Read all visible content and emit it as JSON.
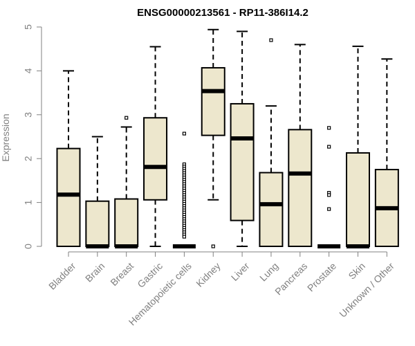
{
  "chart_data": {
    "type": "box",
    "title": "ENSG00000213561 - RP11-386I14.2",
    "xlabel": "",
    "ylabel": "Expression",
    "ylim": [
      0,
      5
    ],
    "yticks": [
      0,
      1,
      2,
      3,
      4,
      5
    ],
    "grid": false,
    "box_fill": "#ede7cd",
    "box_stroke": "#000000",
    "axis_color": "#808080",
    "categories": [
      "Bladder",
      "Brain",
      "Breast",
      "Gastric",
      "Hematopoietic cells",
      "Kidney",
      "Liver",
      "Lung",
      "Pancreas",
      "Prostate",
      "Skin",
      "Unknown / Other"
    ],
    "boxes": [
      {
        "min": 0,
        "q1": 0,
        "median": 1.18,
        "q3": 2.23,
        "max": 4.0,
        "outliers": []
      },
      {
        "min": 0,
        "q1": 0,
        "median": 0,
        "q3": 1.03,
        "max": 2.5,
        "outliers": []
      },
      {
        "min": 0,
        "q1": 0,
        "median": 0,
        "q3": 1.08,
        "max": 2.72,
        "outliers": [
          2.93
        ]
      },
      {
        "min": 0,
        "q1": 1.06,
        "median": 1.81,
        "q3": 2.93,
        "max": 4.55,
        "outliers": []
      },
      {
        "min": 0,
        "q1": 0,
        "median": 0,
        "q3": 0,
        "max": 0,
        "outliers": [
          2.57,
          1.87,
          1.82,
          1.77,
          1.72,
          1.67,
          1.62,
          1.57,
          1.52,
          1.47,
          1.42,
          1.37,
          1.32,
          1.27,
          1.22,
          1.17,
          1.12,
          1.07,
          1.02,
          0.97,
          0.92,
          0.87,
          0.82,
          0.77,
          0.72,
          0.67,
          0.62,
          0.57,
          0.52,
          0.47,
          0.42,
          0.37,
          0.32,
          0.27,
          0.22
        ]
      },
      {
        "min": 1.06,
        "q1": 2.53,
        "median": 3.54,
        "q3": 4.07,
        "max": 4.94,
        "outliers": [
          0
        ]
      },
      {
        "min": 0,
        "q1": 0.59,
        "median": 2.46,
        "q3": 3.25,
        "max": 4.9,
        "outliers": []
      },
      {
        "min": 0,
        "q1": 0,
        "median": 0.96,
        "q3": 1.68,
        "max": 3.2,
        "outliers": [
          4.7
        ]
      },
      {
        "min": 0,
        "q1": 0,
        "median": 1.66,
        "q3": 2.66,
        "max": 4.6,
        "outliers": []
      },
      {
        "min": 0,
        "q1": 0,
        "median": 0,
        "q3": 0,
        "max": 0,
        "outliers": [
          2.7,
          2.27,
          1.22,
          1.17,
          0.85
        ]
      },
      {
        "min": 0,
        "q1": 0,
        "median": 0,
        "q3": 2.13,
        "max": 4.56,
        "outliers": []
      },
      {
        "min": 0,
        "q1": 0,
        "median": 0.87,
        "q3": 1.75,
        "max": 4.27,
        "outliers": []
      }
    ]
  }
}
